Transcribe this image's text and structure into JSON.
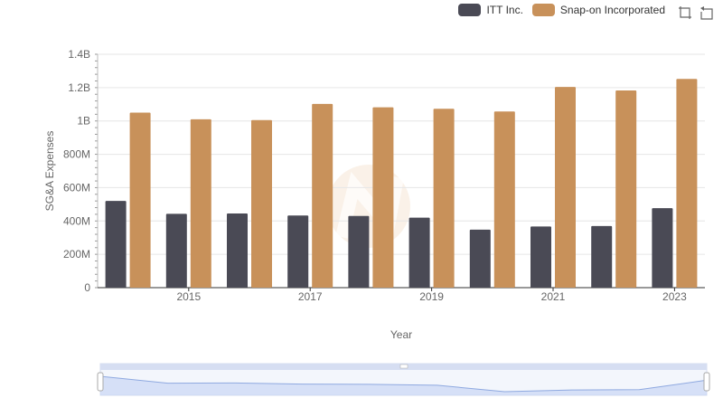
{
  "legend": {
    "items": [
      {
        "label": "ITT Inc.",
        "color": "#4a4a55"
      },
      {
        "label": "Snap-on Incorporated",
        "color": "#c8915a"
      }
    ]
  },
  "toolbox": {
    "icons": [
      "zoom-icon",
      "restore-icon"
    ]
  },
  "chart_data": {
    "type": "bar",
    "xlabel": "Year",
    "ylabel": "SG&A Expenses",
    "ylim": [
      0,
      1400000000
    ],
    "y_ticks": [
      "0",
      "200M",
      "400M",
      "600M",
      "800M",
      "1B",
      "1.2B",
      "1.4B"
    ],
    "categories": [
      "2014",
      "2015",
      "2016",
      "2017",
      "2018",
      "2019",
      "2020",
      "2021",
      "2022",
      "2023"
    ],
    "x_tick_labels": [
      "2015",
      "2017",
      "2019",
      "2021",
      "2023"
    ],
    "series": [
      {
        "name": "ITT Inc.",
        "color": "#4a4a55",
        "values": [
          520000000,
          443000000,
          445000000,
          433000000,
          430000000,
          420000000,
          348000000,
          367000000,
          370000000,
          477000000
        ]
      },
      {
        "name": "Snap-on Incorporated",
        "color": "#c8915a",
        "values": [
          1050000000,
          1010000000,
          1005000000,
          1102000000,
          1082000000,
          1073000000,
          1057000000,
          1204000000,
          1183000000,
          1252000000
        ]
      }
    ],
    "grid": true,
    "legend_position": "top-right",
    "data_zoom": {
      "range": [
        0,
        100
      ]
    }
  }
}
